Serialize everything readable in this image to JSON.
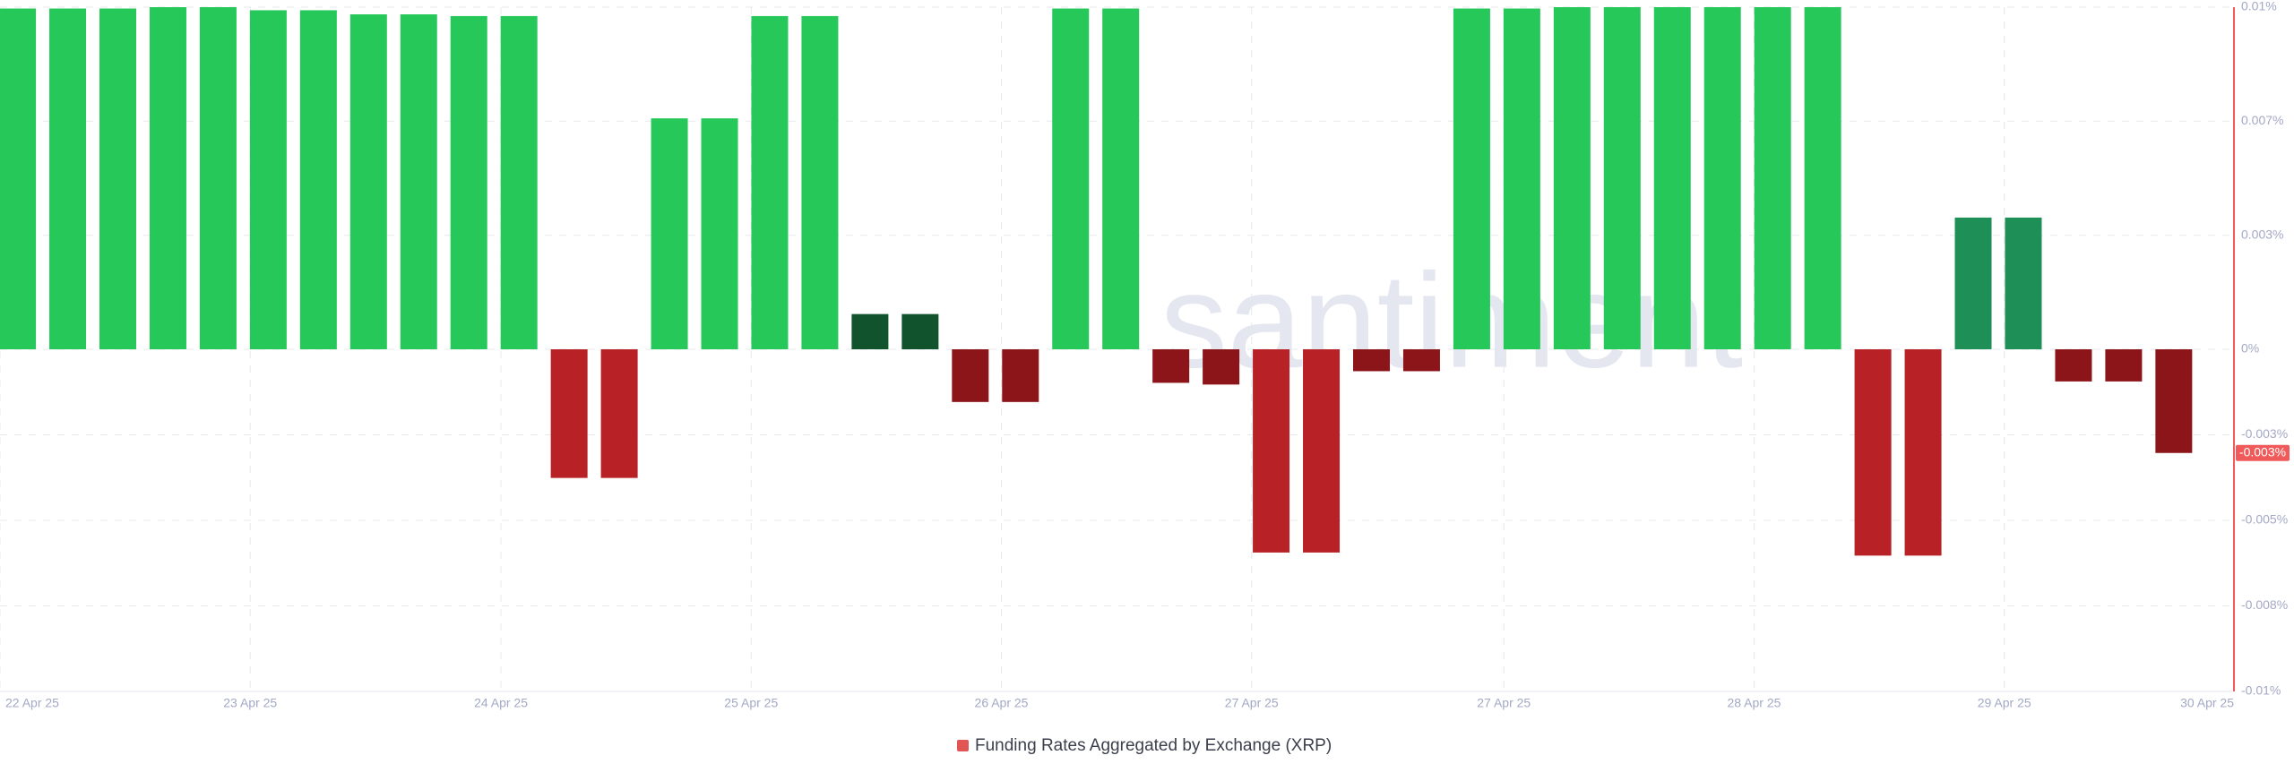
{
  "chart_data": {
    "type": "bar",
    "watermark": "santiment",
    "series": [
      {
        "name": "Funding Rates Aggregated by Exchange (XRP)",
        "color": "#e25555",
        "values": [
          0.00996,
          0.00996,
          0.00996,
          0.01,
          0.01,
          0.00991,
          0.00991,
          0.00979,
          0.00979,
          0.00974,
          0.00974,
          -0.00376,
          -0.00376,
          0.00675,
          0.00675,
          0.00974,
          0.00974,
          0.00103,
          0.00103,
          -0.00154,
          -0.00154,
          0.00996,
          0.00996,
          -0.00098,
          -0.00103,
          -0.00594,
          -0.00594,
          -0.00064,
          -0.00064,
          0.00996,
          0.00996,
          0.01,
          0.01,
          0.01,
          0.01,
          0.01,
          0.01,
          -0.00603,
          -0.00603,
          0.00385,
          0.00385,
          -0.00094,
          -0.00094,
          -0.00303
        ],
        "colors": [
          "#27c85a",
          "#27c85a",
          "#27c85a",
          "#27c85a",
          "#27c85a",
          "#27c85a",
          "#27c85a",
          "#27c85a",
          "#27c85a",
          "#27c85a",
          "#27c85a",
          "#b82227",
          "#b82227",
          "#27c85a",
          "#27c85a",
          "#27c85a",
          "#27c85a",
          "#11532d",
          "#11532d",
          "#8c1519",
          "#8c1519",
          "#27c85a",
          "#27c85a",
          "#8c1519",
          "#8c1519",
          "#b82227",
          "#b82227",
          "#8c1519",
          "#8c1519",
          "#27c85a",
          "#27c85a",
          "#27c85a",
          "#27c85a",
          "#27c85a",
          "#27c85a",
          "#27c85a",
          "#27c85a",
          "#b82227",
          "#b82227",
          "#1e8f57",
          "#1e8f57",
          "#8c1519",
          "#8c1519",
          "#8c1519"
        ]
      }
    ],
    "x": [
      0,
      1,
      2,
      3,
      4,
      5,
      6,
      7,
      8,
      9,
      10,
      11,
      12,
      13,
      14,
      15,
      16,
      17,
      18,
      19,
      20,
      21,
      22,
      23,
      24,
      25,
      26,
      27,
      28,
      29,
      30,
      31,
      32,
      33,
      34,
      35,
      36,
      37,
      38,
      39,
      40,
      41,
      42,
      43
    ],
    "xlim": [
      -0.35,
      44.2
    ],
    "xticks": [
      {
        "value": -0.35,
        "label": "22 Apr 25"
      },
      {
        "value": 4.64,
        "label": "23 Apr 25"
      },
      {
        "value": 9.64,
        "label": "24 Apr 25"
      },
      {
        "value": 14.63,
        "label": "25 Apr 25"
      },
      {
        "value": 19.62,
        "label": "26 Apr 25"
      },
      {
        "value": 24.61,
        "label": "27 Apr 25"
      },
      {
        "value": 29.64,
        "label": "27 Apr 25"
      },
      {
        "value": 34.63,
        "label": "28 Apr 25"
      },
      {
        "value": 39.62,
        "label": "29 Apr 25"
      },
      {
        "value": 44.2,
        "label": "30 Apr 25"
      }
    ],
    "ylim": [
      -0.01,
      0.01
    ],
    "yticks": [
      {
        "value": 0.01,
        "label": "0.01%"
      },
      {
        "value": 0.00667,
        "label": "0.007%"
      },
      {
        "value": 0.00333,
        "label": "0.003%"
      },
      {
        "value": 0,
        "label": "0%"
      },
      {
        "value": -0.0025,
        "label": "-0.003%"
      },
      {
        "value": -0.005,
        "label": "-0.005%"
      },
      {
        "value": -0.0075,
        "label": "-0.008%"
      },
      {
        "value": -0.01,
        "label": "-0.01%"
      }
    ],
    "current_value": {
      "value": -0.00303,
      "label": "-0.003%"
    },
    "grid": true
  }
}
